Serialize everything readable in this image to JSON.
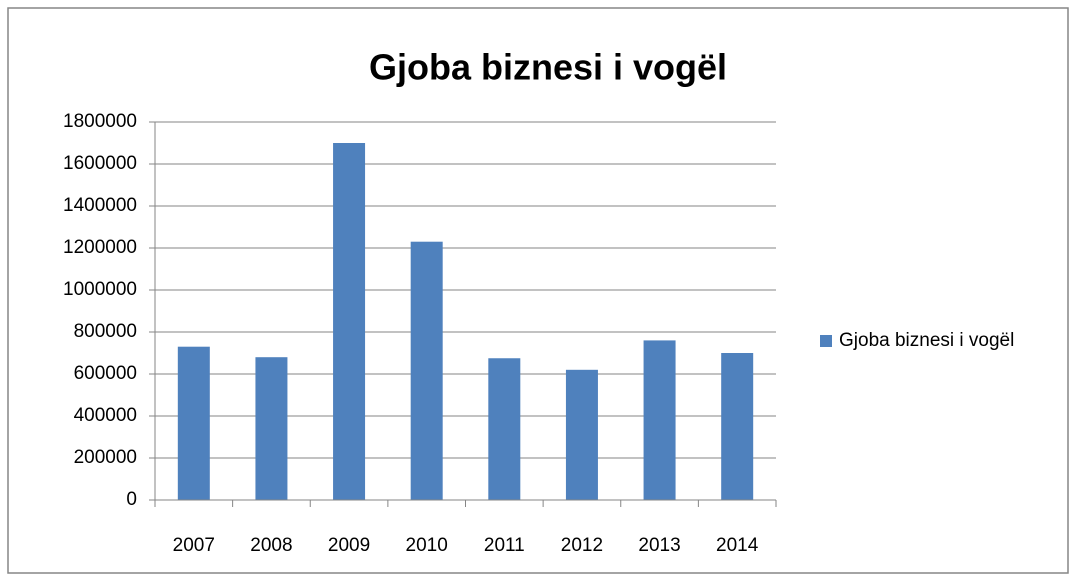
{
  "chart_data": {
    "type": "bar",
    "title": "Gjoba biznesi i vogël",
    "categories": [
      "2007",
      "2008",
      "2009",
      "2010",
      "2011",
      "2012",
      "2013",
      "2014"
    ],
    "series": [
      {
        "name": "Gjoba biznesi i vogël",
        "color": "#4f81bd",
        "values": [
          730000,
          680000,
          1700000,
          1230000,
          675000,
          620000,
          760000,
          700000
        ]
      }
    ],
    "ylim": [
      0,
      1800000
    ],
    "yticks": [
      0,
      200000,
      400000,
      600000,
      800000,
      1000000,
      1200000,
      1400000,
      1600000,
      1800000
    ],
    "grid": true,
    "legend": "right"
  }
}
